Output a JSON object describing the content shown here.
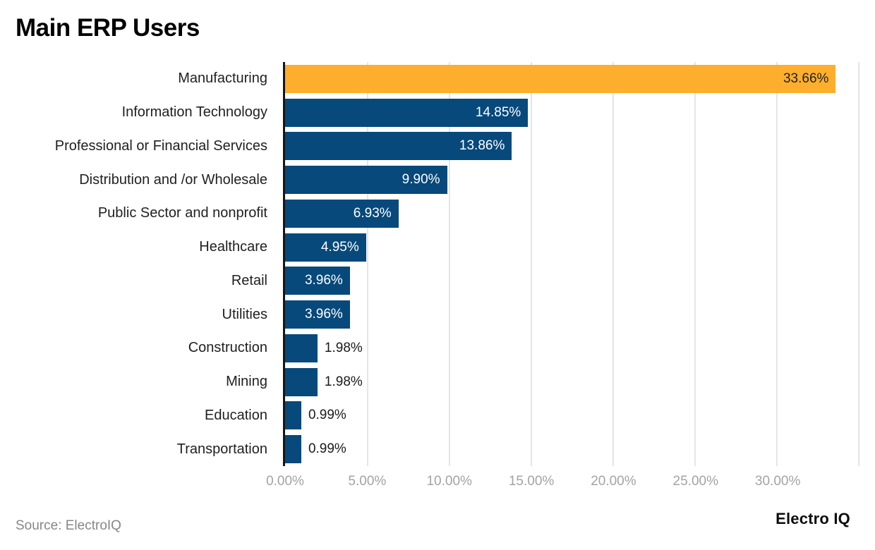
{
  "page": {
    "title": "Main ERP Users",
    "source": "Source: ElectroIQ",
    "brand": "Electro IQ"
  },
  "colors": {
    "highlight_bar": "#FDAE2C",
    "default_bar": "#07497B",
    "grid_line": "#E5E5E5",
    "axis_line": "#161616",
    "tick_label": "#A3A3A3",
    "category_label": "#1F1F1F",
    "value_inside_default": "#FFFFFF",
    "value_inside_highlight": "#212121",
    "value_outside": "#1A1A1A"
  },
  "chart_data": {
    "type": "bar",
    "orientation": "horizontal",
    "title": "Main ERP Users",
    "xlabel": "",
    "ylabel": "",
    "xlim": [
      0,
      35.15
    ],
    "grid": true,
    "legend": false,
    "gridline_values": [
      5,
      10,
      15,
      20,
      25,
      30,
      35
    ],
    "x_ticks": [
      {
        "value": 0,
        "label": "0.00%"
      },
      {
        "value": 5,
        "label": "5.00%"
      },
      {
        "value": 10,
        "label": "10.00%"
      },
      {
        "value": 15,
        "label": "15.00%"
      },
      {
        "value": 20,
        "label": "20.00%"
      },
      {
        "value": 25,
        "label": "25.00%"
      },
      {
        "value": 30,
        "label": "30.00%"
      }
    ],
    "bars": [
      {
        "category": "Manufacturing",
        "value": 33.66,
        "label": "33.66%",
        "highlight": true,
        "label_inside": true
      },
      {
        "category": "Information Technology",
        "value": 14.85,
        "label": "14.85%",
        "highlight": false,
        "label_inside": true
      },
      {
        "category": "Professional or Financial Services",
        "value": 13.86,
        "label": "13.86%",
        "highlight": false,
        "label_inside": true
      },
      {
        "category": "Distribution and /or Wholesale",
        "value": 9.9,
        "label": "9.90%",
        "highlight": false,
        "label_inside": true
      },
      {
        "category": "Public Sector and nonprofit",
        "value": 6.93,
        "label": "6.93%",
        "highlight": false,
        "label_inside": true
      },
      {
        "category": "Healthcare",
        "value": 4.95,
        "label": "4.95%",
        "highlight": false,
        "label_inside": true
      },
      {
        "category": "Retail",
        "value": 3.96,
        "label": "3.96%",
        "highlight": false,
        "label_inside": true
      },
      {
        "category": "Utilities",
        "value": 3.96,
        "label": "3.96%",
        "highlight": false,
        "label_inside": true
      },
      {
        "category": "Construction",
        "value": 1.98,
        "label": "1.98%",
        "highlight": false,
        "label_inside": false
      },
      {
        "category": "Mining",
        "value": 1.98,
        "label": "1.98%",
        "highlight": false,
        "label_inside": false
      },
      {
        "category": "Education",
        "value": 0.99,
        "label": "0.99%",
        "highlight": false,
        "label_inside": false
      },
      {
        "category": "Transportation",
        "value": 0.99,
        "label": "0.99%",
        "highlight": false,
        "label_inside": false
      }
    ]
  }
}
